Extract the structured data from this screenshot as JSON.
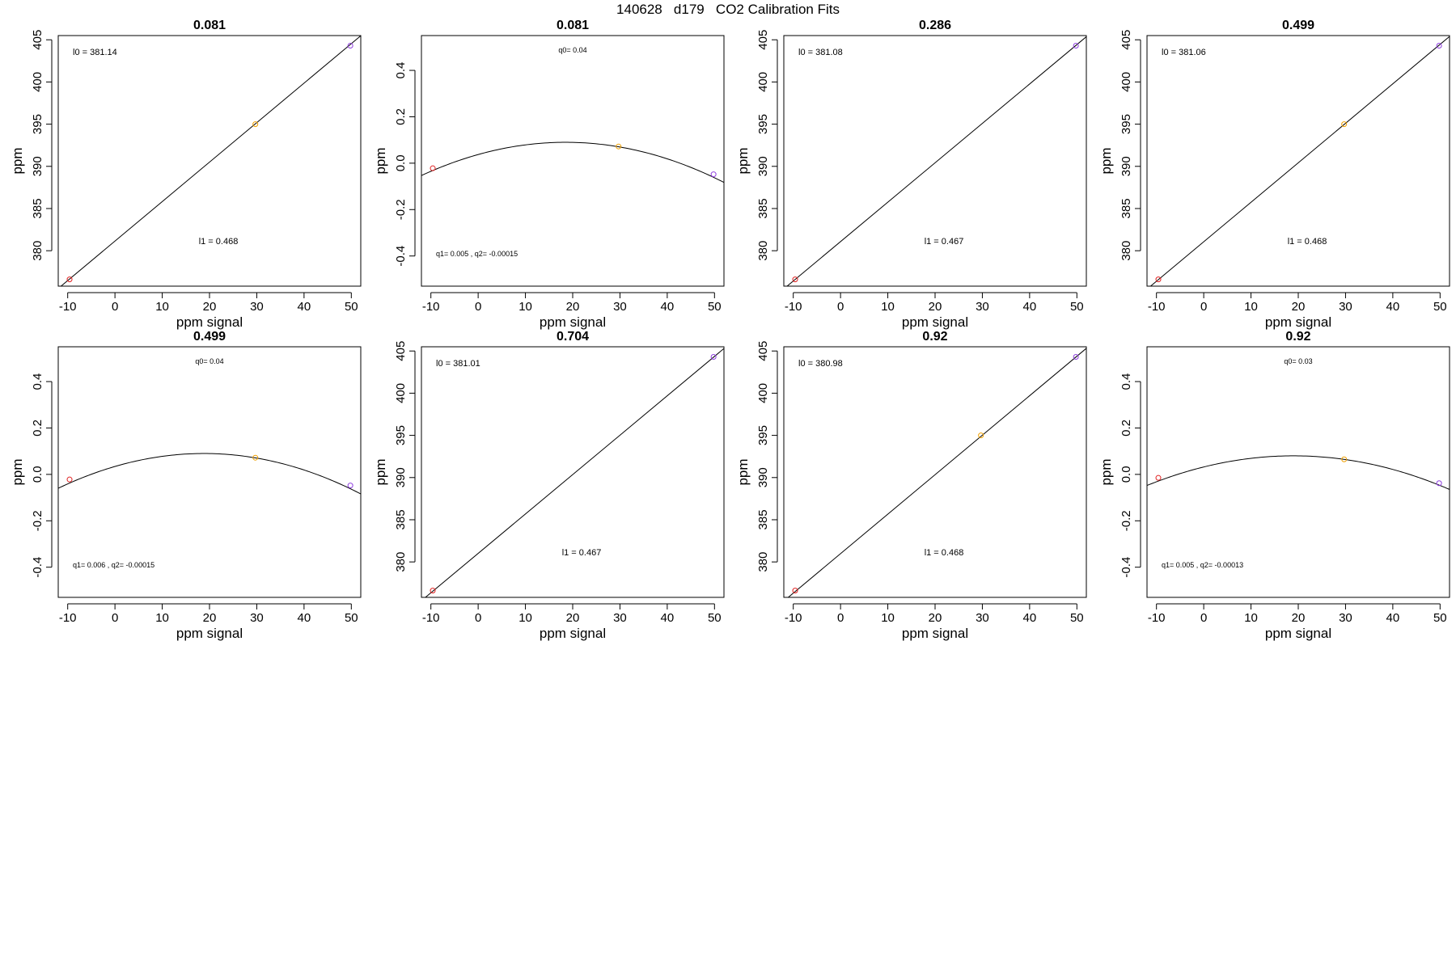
{
  "page_title": "140628   d179   CO2 Calibration Fits",
  "chart_data": [
    {
      "type": "scatter",
      "fit": "linear",
      "title": "0.081",
      "xlabel": "ppm signal",
      "ylabel": "ppm",
      "xlim": [
        -12,
        52
      ],
      "ylim": [
        375.8,
        405.5
      ],
      "xticks": [
        -10,
        0,
        10,
        20,
        30,
        40,
        50
      ],
      "yticks": [
        380,
        385,
        390,
        395,
        400,
        405
      ],
      "points": [
        {
          "x": -9.6,
          "y": 376.6,
          "color": "#e02020"
        },
        {
          "x": 29.7,
          "y": 395.0,
          "color": "#f0a000"
        },
        {
          "x": 49.8,
          "y": 404.3,
          "color": "#9040e0"
        }
      ],
      "line": {
        "intercept": 381.14,
        "slope": 0.468
      },
      "annotations": [
        "l0 =  381.14",
        "l1 =  0.468"
      ]
    },
    {
      "type": "scatter",
      "fit": "quadratic",
      "title": "0.081",
      "xlabel": "ppm signal",
      "ylabel": "ppm",
      "xlim": [
        -12,
        52
      ],
      "ylim": [
        -0.53,
        0.55
      ],
      "xticks": [
        -10,
        0,
        10,
        20,
        30,
        40,
        50
      ],
      "yticks": [
        -0.4,
        -0.2,
        0.0,
        0.2,
        0.4
      ],
      "points": [
        {
          "x": -9.6,
          "y": -0.022,
          "color": "#e02020"
        },
        {
          "x": 29.7,
          "y": 0.072,
          "color": "#f0a000"
        },
        {
          "x": 49.8,
          "y": -0.048,
          "color": "#9040e0"
        }
      ],
      "curve": {
        "peak_x": 18.5,
        "peak_y": 0.09,
        "a": 0.000154
      },
      "annotations": [
        "q0= 0.04",
        "q1= 0.005 , q2= -0.00015"
      ]
    },
    {
      "type": "scatter",
      "fit": "linear",
      "title": "0.286",
      "xlabel": "ppm signal",
      "ylabel": "ppm",
      "xlim": [
        -12,
        52
      ],
      "ylim": [
        375.8,
        405.5
      ],
      "xticks": [
        -10,
        0,
        10,
        20,
        30,
        40,
        50
      ],
      "yticks": [
        380,
        385,
        390,
        395,
        400,
        405
      ],
      "points": [
        {
          "x": -9.6,
          "y": 376.6,
          "color": "#e02020"
        },
        {
          "x": 49.8,
          "y": 404.3,
          "color": "#9040e0"
        }
      ],
      "line": {
        "intercept": 381.08,
        "slope": 0.467
      },
      "annotations": [
        "l0 =  381.08",
        "l1 =  0.467"
      ]
    },
    {
      "type": "scatter",
      "fit": "linear",
      "title": "0.499",
      "xlabel": "ppm signal",
      "ylabel": "ppm",
      "xlim": [
        -12,
        52
      ],
      "ylim": [
        375.8,
        405.5
      ],
      "xticks": [
        -10,
        0,
        10,
        20,
        30,
        40,
        50
      ],
      "yticks": [
        380,
        385,
        390,
        395,
        400,
        405
      ],
      "points": [
        {
          "x": -9.6,
          "y": 376.6,
          "color": "#e02020"
        },
        {
          "x": 29.7,
          "y": 395.0,
          "color": "#f0a000"
        },
        {
          "x": 49.8,
          "y": 404.3,
          "color": "#9040e0"
        }
      ],
      "line": {
        "intercept": 381.06,
        "slope": 0.468
      },
      "annotations": [
        "l0 =  381.06",
        "l1 =  0.468"
      ]
    },
    {
      "type": "scatter",
      "fit": "quadratic",
      "title": "0.499",
      "xlabel": "ppm signal",
      "ylabel": "ppm",
      "xlim": [
        -12,
        52
      ],
      "ylim": [
        -0.53,
        0.55
      ],
      "xticks": [
        -10,
        0,
        10,
        20,
        30,
        40,
        50
      ],
      "yticks": [
        -0.4,
        -0.2,
        0.0,
        0.2,
        0.4
      ],
      "points": [
        {
          "x": -9.6,
          "y": -0.022,
          "color": "#e02020"
        },
        {
          "x": 29.7,
          "y": 0.072,
          "color": "#f0a000"
        },
        {
          "x": 49.8,
          "y": -0.048,
          "color": "#9040e0"
        }
      ],
      "curve": {
        "peak_x": 18.8,
        "peak_y": 0.09,
        "a": 0.000158
      },
      "annotations": [
        "q0= 0.04",
        "q1= 0.006 , q2= -0.00015"
      ]
    },
    {
      "type": "scatter",
      "fit": "linear",
      "title": "0.704",
      "xlabel": "ppm signal",
      "ylabel": "ppm",
      "xlim": [
        -12,
        52
      ],
      "ylim": [
        375.8,
        405.5
      ],
      "xticks": [
        -10,
        0,
        10,
        20,
        30,
        40,
        50
      ],
      "yticks": [
        380,
        385,
        390,
        395,
        400,
        405
      ],
      "points": [
        {
          "x": -9.6,
          "y": 376.6,
          "color": "#e02020"
        },
        {
          "x": 49.8,
          "y": 404.3,
          "color": "#9040e0"
        }
      ],
      "line": {
        "intercept": 381.01,
        "slope": 0.467
      },
      "annotations": [
        "l0 =  381.01",
        "l1 =  0.467"
      ]
    },
    {
      "type": "scatter",
      "fit": "linear",
      "title": "0.92",
      "xlabel": "ppm signal",
      "ylabel": "ppm",
      "xlim": [
        -12,
        52
      ],
      "ylim": [
        375.8,
        405.5
      ],
      "xticks": [
        -10,
        0,
        10,
        20,
        30,
        40,
        50
      ],
      "yticks": [
        380,
        385,
        390,
        395,
        400,
        405
      ],
      "points": [
        {
          "x": -9.6,
          "y": 376.6,
          "color": "#e02020"
        },
        {
          "x": 29.7,
          "y": 395.0,
          "color": "#f0a000"
        },
        {
          "x": 49.8,
          "y": 404.3,
          "color": "#9040e0"
        }
      ],
      "line": {
        "intercept": 380.98,
        "slope": 0.468
      },
      "annotations": [
        "l0 =  380.98",
        "l1 =  0.468"
      ]
    },
    {
      "type": "scatter",
      "fit": "quadratic",
      "title": "0.92",
      "xlabel": "ppm signal",
      "ylabel": "ppm",
      "xlim": [
        -12,
        52
      ],
      "ylim": [
        -0.53,
        0.55
      ],
      "xticks": [
        -10,
        0,
        10,
        20,
        30,
        40,
        50
      ],
      "yticks": [
        -0.4,
        -0.2,
        0.0,
        0.2,
        0.4
      ],
      "points": [
        {
          "x": -9.6,
          "y": -0.015,
          "color": "#e02020"
        },
        {
          "x": 29.7,
          "y": 0.065,
          "color": "#f0a000"
        },
        {
          "x": 49.8,
          "y": -0.038,
          "color": "#9040e0"
        }
      ],
      "curve": {
        "peak_x": 19.0,
        "peak_y": 0.08,
        "a": 0.000133
      },
      "annotations": [
        "q0= 0.03",
        "q1= 0.005 , q2= -0.00013"
      ]
    }
  ]
}
